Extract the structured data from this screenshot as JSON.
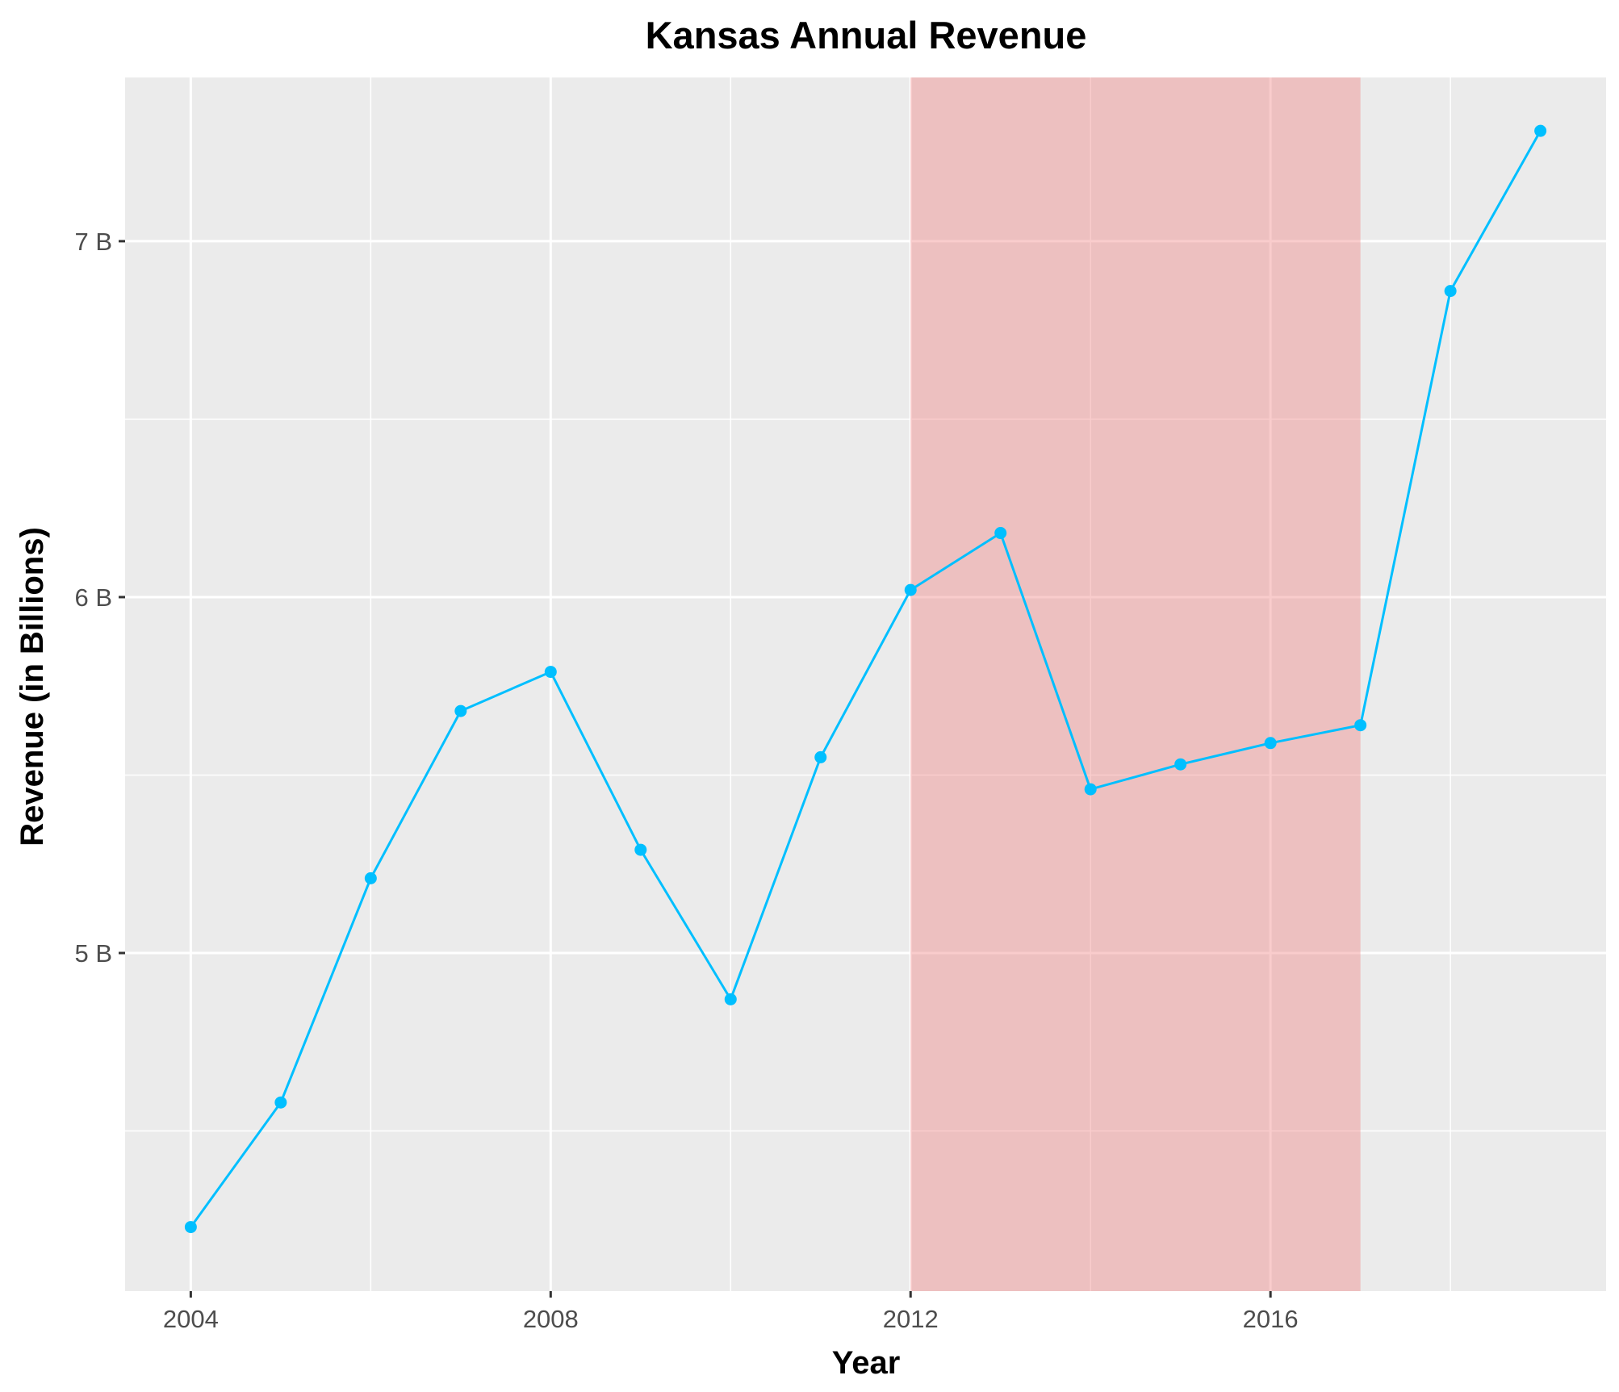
{
  "chart_data": {
    "type": "line",
    "title": "Kansas Annual Revenue",
    "xlabel": "Year",
    "ylabel": "Revenue (in Billions)",
    "x": [
      2004,
      2005,
      2006,
      2007,
      2008,
      2009,
      2010,
      2011,
      2012,
      2013,
      2014,
      2015,
      2016,
      2017,
      2018,
      2019
    ],
    "series": [
      {
        "values": [
          4.23,
          4.58,
          5.21,
          5.68,
          5.79,
          5.29,
          4.87,
          5.55,
          6.02,
          6.18,
          5.46,
          5.53,
          5.59,
          5.64,
          6.86,
          7.31
        ],
        "color": "#00BFFF"
      }
    ],
    "xlim": [
      2003.27,
      2019.73
    ],
    "ylim": [
      4.05,
      7.46
    ],
    "xticks": [
      2004,
      2008,
      2012,
      2016
    ],
    "xtick_labels": [
      "2004",
      "2008",
      "2012",
      "2016"
    ],
    "yticks": [
      5,
      6,
      7
    ],
    "ytick_labels": [
      "5 B",
      "6 B",
      "7 B"
    ],
    "shaded_region": {
      "x": [
        2012,
        2017
      ],
      "color": "#F08080",
      "opacity": 0.4
    },
    "panel_background": "#EBEBEB",
    "grid": true,
    "legend": "none"
  }
}
